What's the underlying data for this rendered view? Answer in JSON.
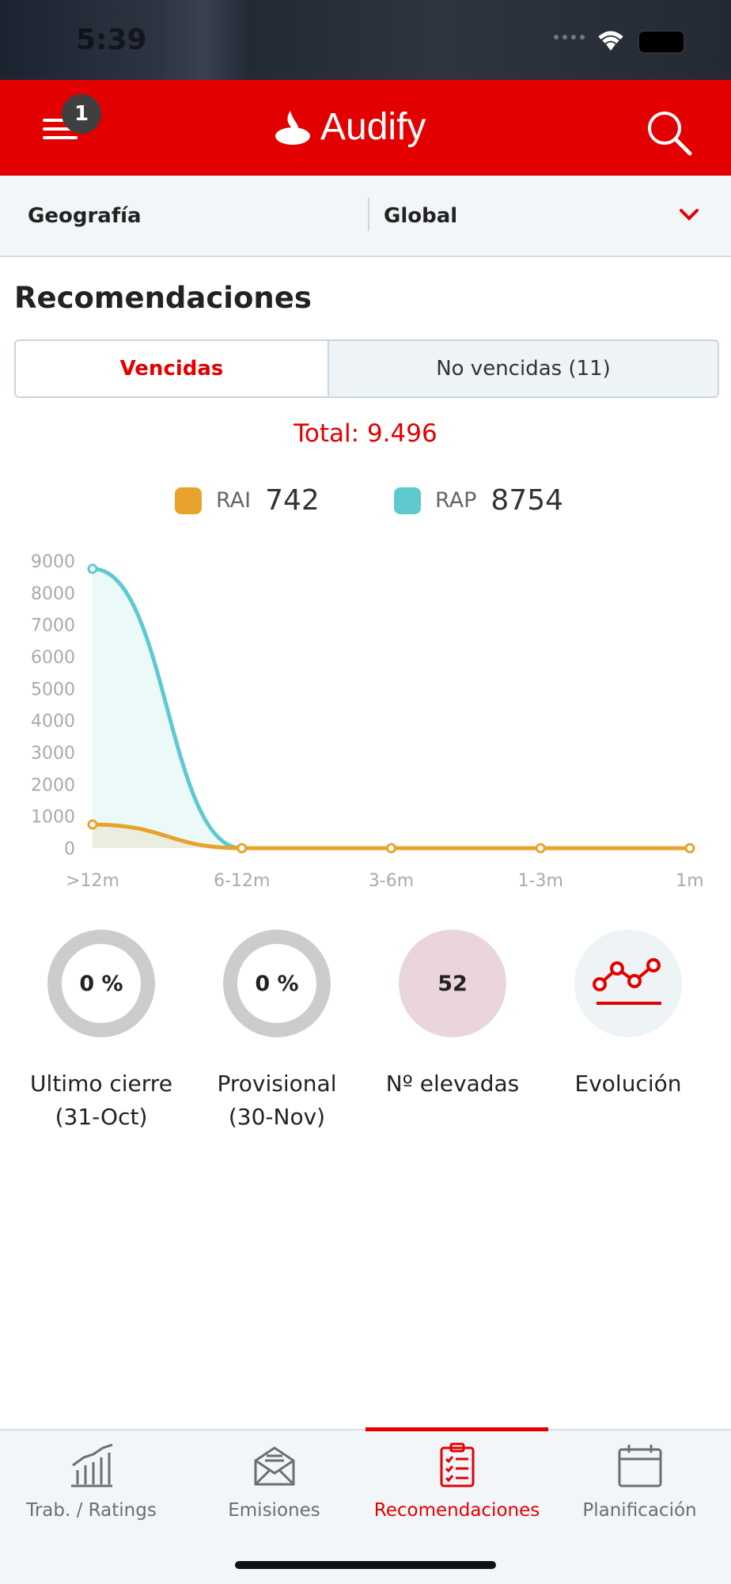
{
  "status_bar": {
    "time": "5:39"
  },
  "header": {
    "badge_count": "1",
    "app_name": "Audify"
  },
  "filter": {
    "label": "Geografía",
    "value": "Global"
  },
  "section": {
    "title": "Recomendaciones"
  },
  "tabs": {
    "active": "Vencidas",
    "inactive": "No vencidas (11)"
  },
  "total_text": "Total: 9.496",
  "legend": [
    {
      "name": "RAI",
      "value": "742",
      "color": "#E8A32C"
    },
    {
      "name": "RAP",
      "value": "8754",
      "color": "#5ECAD0"
    }
  ],
  "chart_data": {
    "type": "area",
    "categories": [
      ">12m",
      "6-12m",
      "3-6m",
      "1-3m",
      "1m"
    ],
    "series": [
      {
        "name": "RAI",
        "values": [
          742,
          0,
          0,
          0,
          0
        ],
        "color": "#E8A32C"
      },
      {
        "name": "RAP",
        "values": [
          8754,
          0,
          0,
          0,
          0
        ],
        "color": "#5ECAD0"
      }
    ],
    "yticks": [
      "0",
      "1000",
      "2000",
      "3000",
      "4000",
      "5000",
      "6000",
      "7000",
      "8000",
      "9000"
    ],
    "ylim": [
      0,
      9000
    ],
    "grid": false
  },
  "metrics": [
    {
      "value": "0 %",
      "label_line1": "Ultimo cierre",
      "label_line2": "(31-Oct)"
    },
    {
      "value": "0 %",
      "label_line1": "Provisional",
      "label_line2": "(30-Nov)"
    },
    {
      "value": "52",
      "label_line1": "Nº elevadas",
      "label_line2": ""
    },
    {
      "value": "",
      "label_line1": "Evolución",
      "label_line2": ""
    }
  ],
  "bottom_nav": [
    {
      "label": "Trab. / Ratings",
      "icon": "bar-chart-icon"
    },
    {
      "label": "Emisiones",
      "icon": "envelope-icon"
    },
    {
      "label": "Recomendaciones",
      "icon": "clipboard-checklist-icon"
    },
    {
      "label": "Planificación",
      "icon": "calendar-icon"
    }
  ],
  "colors": {
    "brand_red": "#E30000",
    "rai": "#E8A32C",
    "rap": "#5ECAD0"
  }
}
